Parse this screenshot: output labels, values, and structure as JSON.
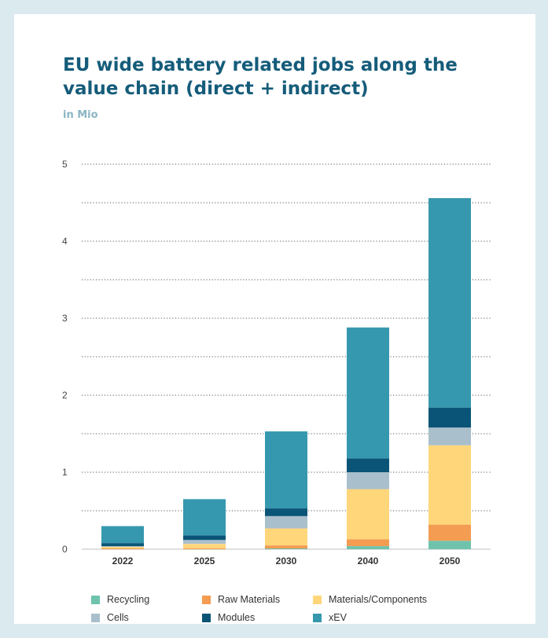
{
  "chart_data": {
    "type": "bar",
    "stacked": true,
    "title": "EU wide battery related jobs along the value chain (direct + indirect)",
    "subtitle": "in Mio",
    "xlabel": "",
    "ylabel": "",
    "categories": [
      "2022",
      "2025",
      "2030",
      "2040",
      "2050"
    ],
    "ylim": [
      0,
      5
    ],
    "yticks": [
      0,
      1,
      2,
      3,
      4,
      5
    ],
    "grid": true,
    "legend_position": "bottom",
    "series": [
      {
        "name": "Recycling",
        "color": "#6fc3ad",
        "values": [
          0.0,
          0.0,
          0.01,
          0.04,
          0.11
        ]
      },
      {
        "name": "Raw Materials",
        "color": "#f39c52",
        "values": [
          0.01,
          0.01,
          0.04,
          0.09,
          0.21
        ]
      },
      {
        "name": "Materials/Components",
        "color": "#ffd67a",
        "values": [
          0.02,
          0.06,
          0.22,
          0.65,
          1.03
        ]
      },
      {
        "name": "Cells",
        "color": "#a9bfcc",
        "values": [
          0.01,
          0.05,
          0.16,
          0.22,
          0.23
        ]
      },
      {
        "name": "Modules",
        "color": "#0a5577",
        "values": [
          0.04,
          0.06,
          0.1,
          0.18,
          0.26
        ]
      },
      {
        "name": "xEV",
        "color": "#3698ae",
        "values": [
          0.22,
          0.47,
          1.0,
          1.7,
          2.72
        ]
      }
    ]
  }
}
